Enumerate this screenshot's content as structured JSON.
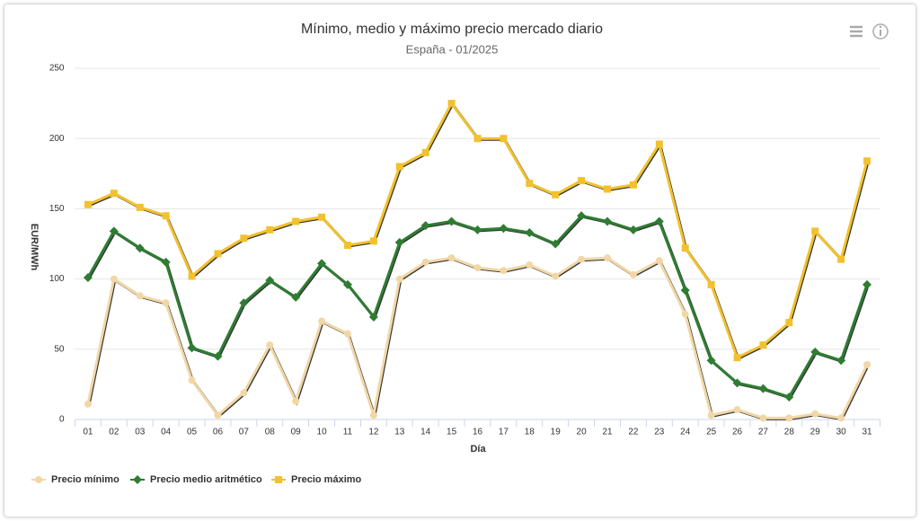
{
  "chart_data": {
    "type": "line",
    "title": "Mínimo, medio y máximo precio mercado diario",
    "subtitle": "España - 01/2025",
    "y_label": "EUR/MWh",
    "x_label": "Día",
    "categories": [
      "01",
      "02",
      "03",
      "04",
      "05",
      "06",
      "07",
      "08",
      "09",
      "10",
      "11",
      "12",
      "13",
      "14",
      "15",
      "16",
      "17",
      "18",
      "19",
      "20",
      "21",
      "22",
      "23",
      "24",
      "25",
      "26",
      "27",
      "28",
      "29",
      "30",
      "31"
    ],
    "ylim": [
      0,
      250
    ],
    "yticks": [
      0,
      50,
      100,
      150,
      200,
      250
    ],
    "grid": true,
    "series": [
      {
        "name": "Precio mínimo",
        "color": "#f1d7a6",
        "marker": "circle",
        "values": [
          11,
          100,
          88,
          83,
          28,
          3,
          19,
          53,
          13,
          70,
          61,
          3,
          100,
          112,
          115,
          108,
          106,
          110,
          102,
          114,
          115,
          103,
          113,
          75,
          3,
          7,
          1,
          1,
          4,
          1,
          39
        ]
      },
      {
        "name": "Precio medio aritmético",
        "color": "#2e7d32",
        "marker": "diamond",
        "values": [
          101,
          134,
          122,
          112,
          51,
          45,
          83,
          99,
          87,
          111,
          96,
          73,
          126,
          138,
          141,
          135,
          136,
          133,
          125,
          145,
          141,
          135,
          141,
          92,
          42,
          26,
          22,
          16,
          48,
          42,
          96
        ]
      },
      {
        "name": "Precio máximo",
        "color": "#f2c12e",
        "marker": "square",
        "values": [
          153,
          161,
          151,
          145,
          102,
          118,
          129,
          135,
          141,
          144,
          124,
          127,
          180,
          190,
          225,
          200,
          200,
          168,
          160,
          170,
          164,
          167,
          196,
          122,
          96,
          44,
          53,
          69,
          134,
          114,
          184
        ]
      }
    ]
  }
}
